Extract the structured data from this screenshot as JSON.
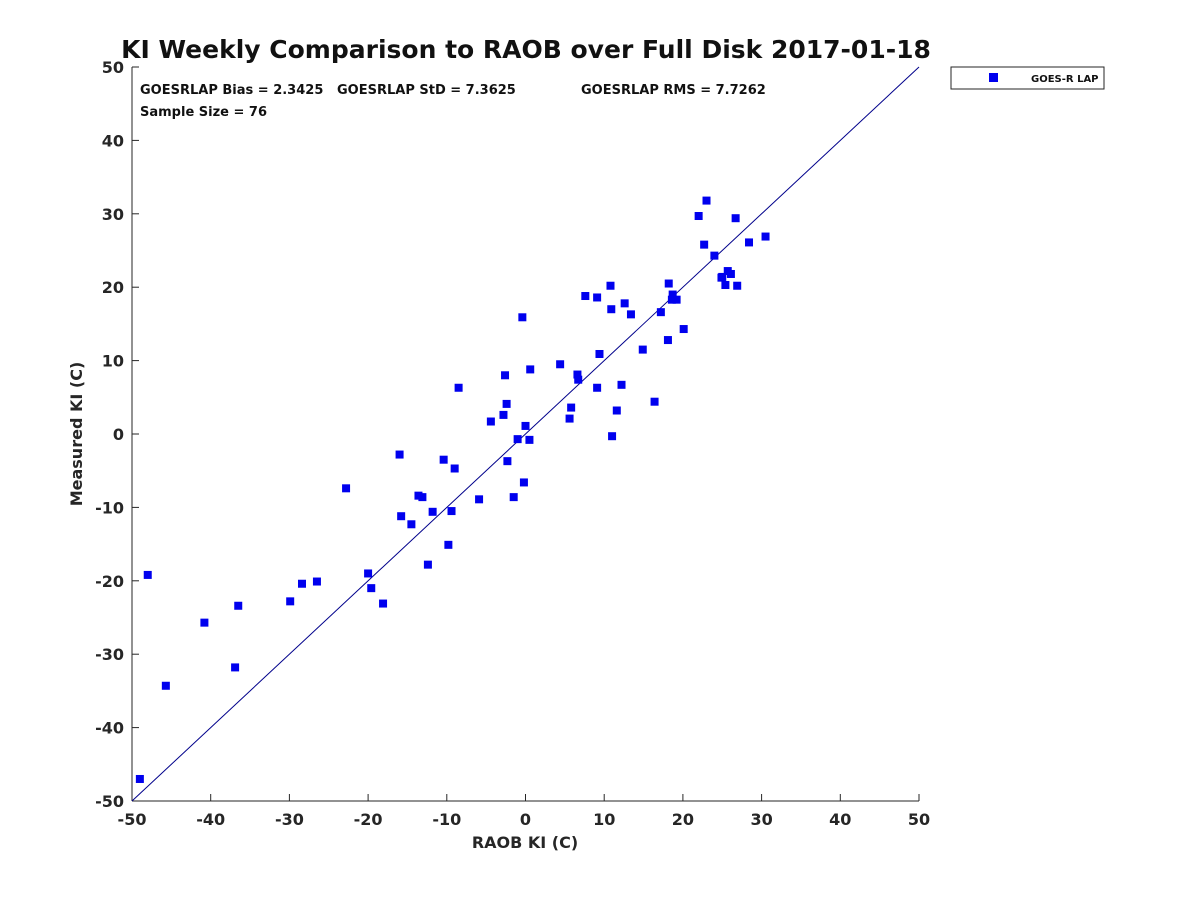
{
  "chart_data": {
    "type": "scatter",
    "title": "KI Weekly Comparison to RAOB over Full Disk 2017-01-18",
    "xlabel": "RAOB KI (C)",
    "ylabel": "Measured KI (C)",
    "xlim": [
      -50,
      50
    ],
    "ylim": [
      -50,
      50
    ],
    "xticks": [
      "-50",
      "-40",
      "-30",
      "-20",
      "-10",
      "0",
      "10",
      "20",
      "30",
      "40",
      "50"
    ],
    "yticks": [
      "-50",
      "-40",
      "-30",
      "-20",
      "-10",
      "0",
      "10",
      "20",
      "30",
      "40",
      "50"
    ],
    "grid": false,
    "legend_position": "outside-top-right",
    "reference_line": "y = x",
    "reference_line_color": "#00008b",
    "annotations": {
      "bias": "GOESRLAP Bias = 2.3425",
      "std": "GOESRLAP StD = 7.3625",
      "rms": "GOESRLAP RMS = 7.7262",
      "sample_size": "Sample Size = 76"
    },
    "series": [
      {
        "name": "GOES-R LAP",
        "color": "#0000ee",
        "marker": "square",
        "points": [
          [
            -49.0,
            -47.0
          ],
          [
            -48.0,
            -19.2
          ],
          [
            -45.7,
            -34.3
          ],
          [
            -40.8,
            -25.7
          ],
          [
            -36.9,
            -31.8
          ],
          [
            -36.5,
            -23.4
          ],
          [
            -29.9,
            -22.8
          ],
          [
            -28.4,
            -20.4
          ],
          [
            -26.5,
            -20.1
          ],
          [
            -22.8,
            -7.4
          ],
          [
            -20.0,
            -19.0
          ],
          [
            -19.6,
            -21.0
          ],
          [
            -18.1,
            -23.1
          ],
          [
            -16.0,
            -2.8
          ],
          [
            -15.8,
            -11.2
          ],
          [
            -14.5,
            -12.3
          ],
          [
            -13.6,
            -8.4
          ],
          [
            -13.1,
            -8.6
          ],
          [
            -12.4,
            -17.8
          ],
          [
            -11.8,
            -10.6
          ],
          [
            -10.4,
            -3.5
          ],
          [
            -9.8,
            -15.1
          ],
          [
            -9.4,
            -10.5
          ],
          [
            -9.0,
            -4.7
          ],
          [
            -8.5,
            6.3
          ],
          [
            -5.9,
            -8.9
          ],
          [
            -4.4,
            1.7
          ],
          [
            -2.8,
            2.6
          ],
          [
            -2.6,
            8.0
          ],
          [
            -2.4,
            4.1
          ],
          [
            -2.3,
            -3.7
          ],
          [
            -1.5,
            -8.6
          ],
          [
            -1.0,
            -0.7
          ],
          [
            -0.4,
            15.9
          ],
          [
            -0.2,
            -6.6
          ],
          [
            0.0,
            1.1
          ],
          [
            0.5,
            -0.8
          ],
          [
            0.6,
            8.8
          ],
          [
            4.4,
            9.5
          ],
          [
            5.6,
            2.1
          ],
          [
            5.8,
            3.6
          ],
          [
            6.6,
            8.1
          ],
          [
            6.7,
            7.4
          ],
          [
            7.6,
            18.8
          ],
          [
            9.1,
            18.6
          ],
          [
            9.1,
            6.3
          ],
          [
            9.4,
            10.9
          ],
          [
            10.8,
            20.2
          ],
          [
            10.9,
            17.0
          ],
          [
            11.0,
            -0.3
          ],
          [
            11.6,
            3.2
          ],
          [
            12.2,
            6.7
          ],
          [
            12.6,
            17.8
          ],
          [
            13.4,
            16.3
          ],
          [
            14.9,
            11.5
          ],
          [
            16.4,
            4.4
          ],
          [
            17.2,
            16.6
          ],
          [
            18.1,
            12.8
          ],
          [
            18.2,
            20.5
          ],
          [
            18.6,
            18.3
          ],
          [
            18.7,
            19.0
          ],
          [
            19.2,
            18.3
          ],
          [
            20.1,
            14.3
          ],
          [
            22.0,
            29.7
          ],
          [
            22.7,
            25.8
          ],
          [
            23.0,
            31.8
          ],
          [
            24.0,
            24.3
          ],
          [
            24.9,
            21.3
          ],
          [
            25.4,
            20.3
          ],
          [
            25.7,
            22.2
          ],
          [
            26.1,
            21.8
          ],
          [
            26.7,
            29.4
          ],
          [
            26.9,
            20.2
          ],
          [
            28.4,
            26.1
          ],
          [
            30.5,
            26.9
          ],
          [
            25.0,
            21.4
          ]
        ]
      }
    ]
  }
}
